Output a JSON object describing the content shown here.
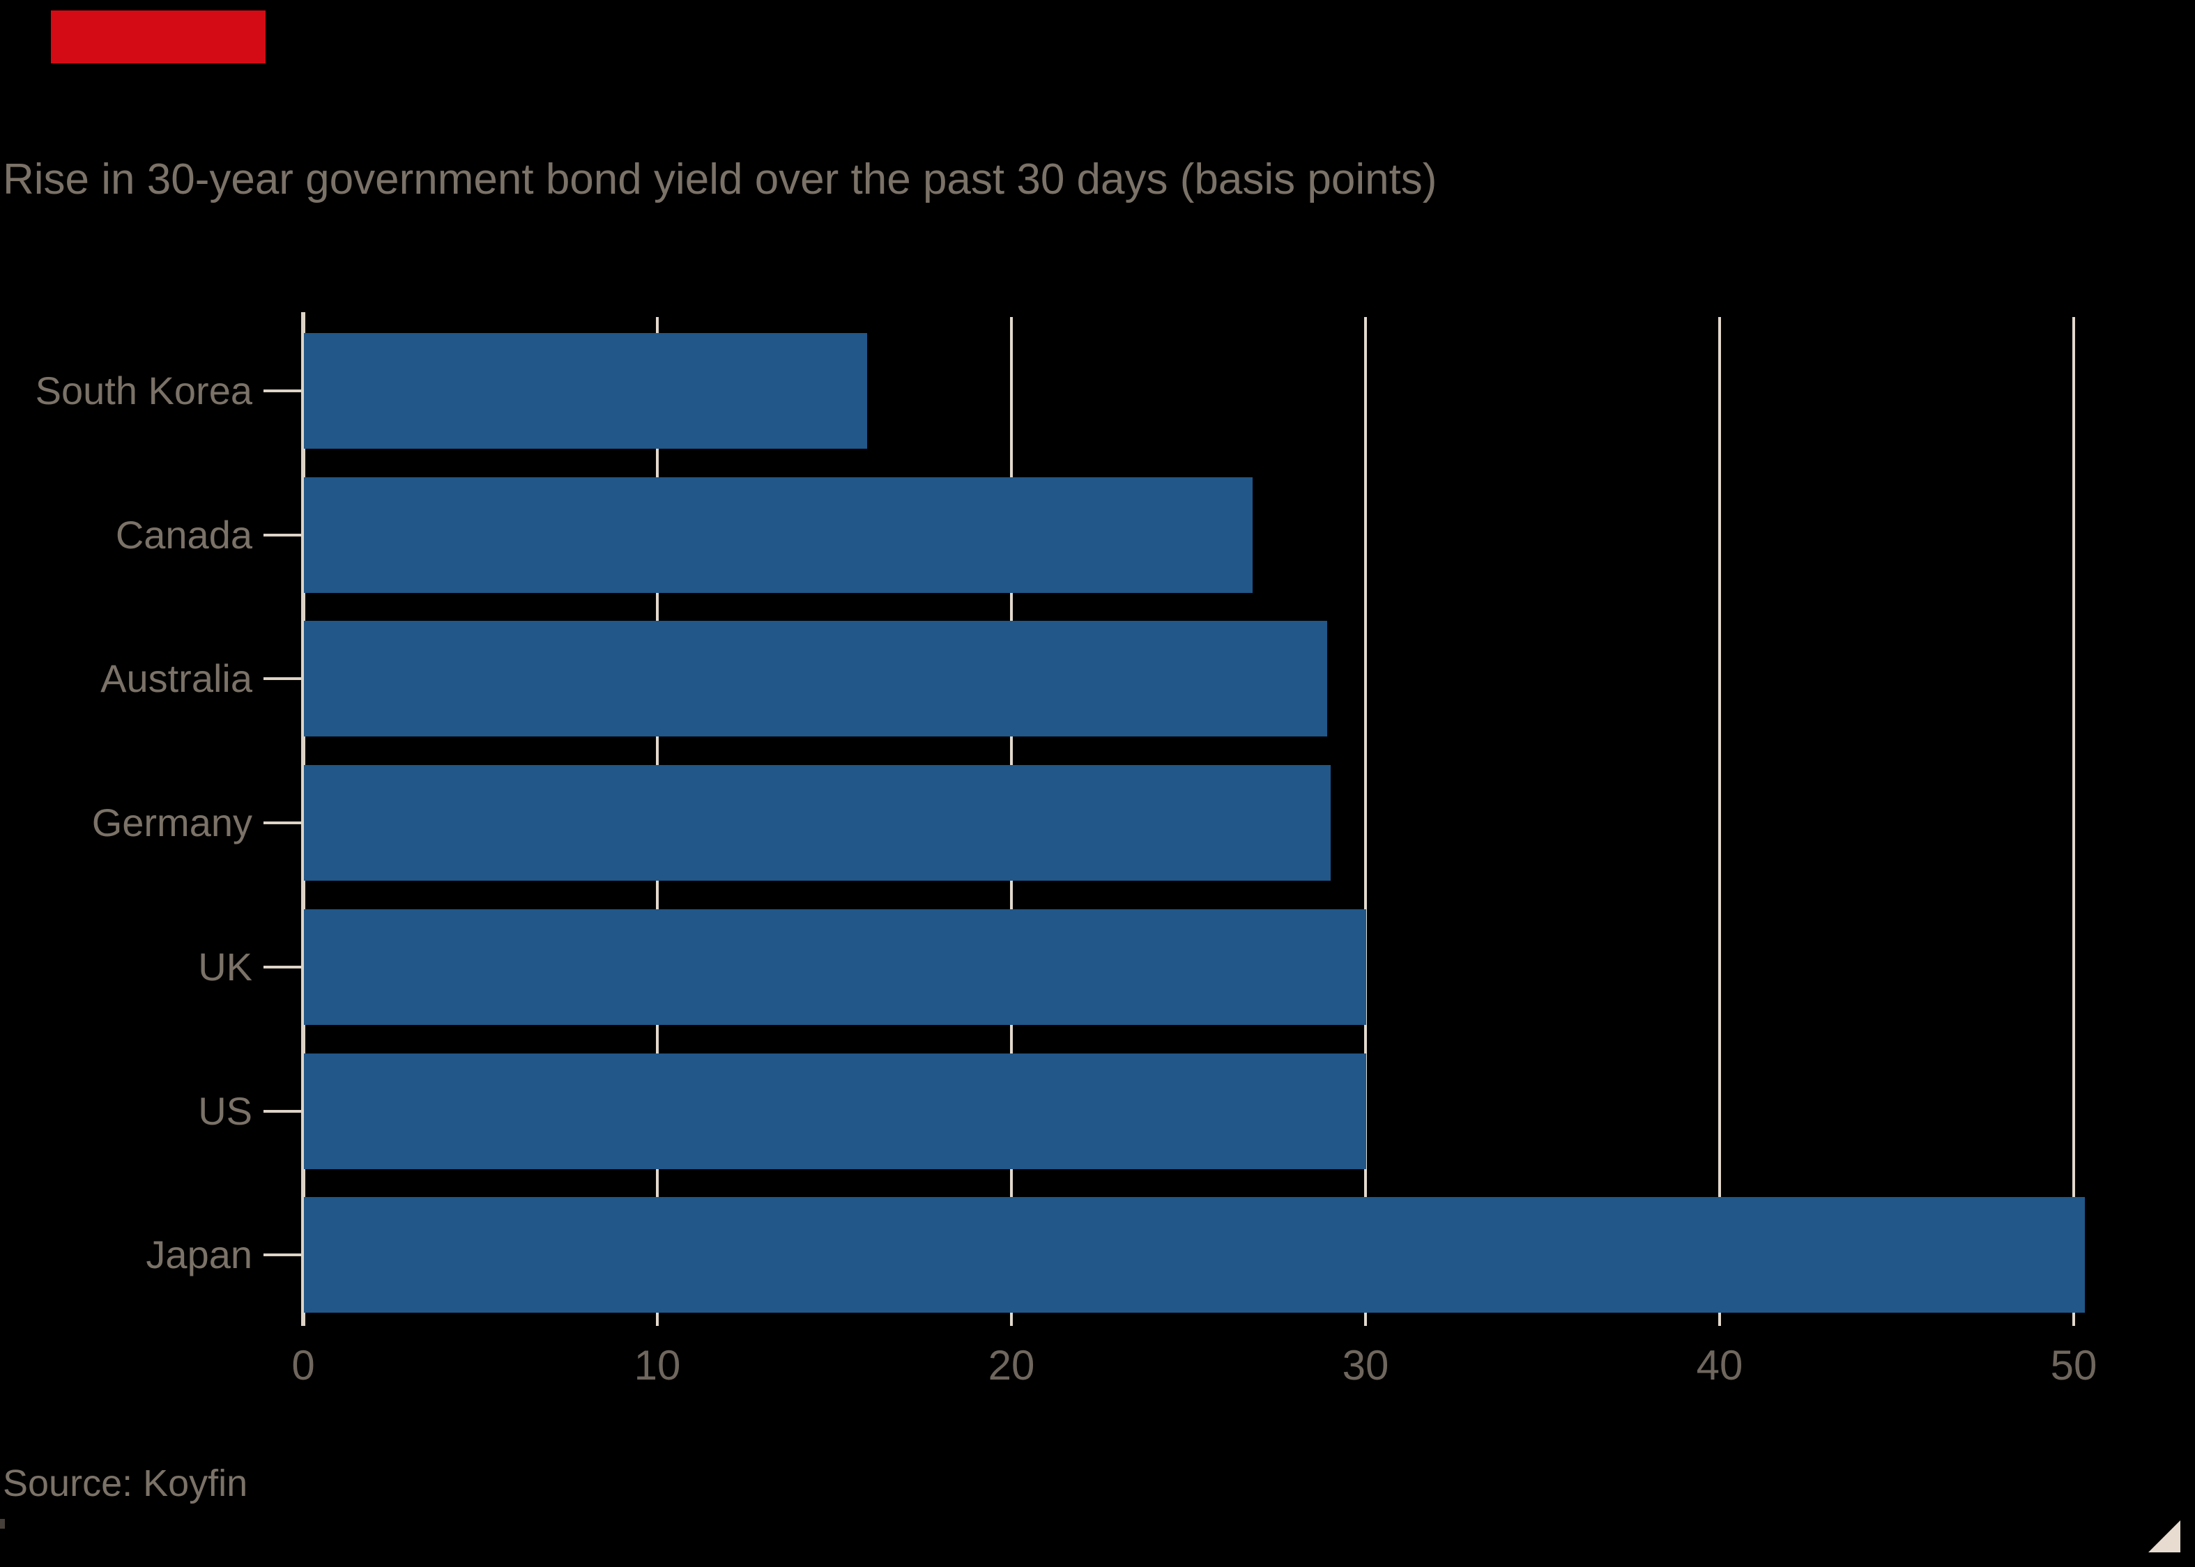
{
  "top_marker": {
    "color": "#d40b14"
  },
  "chart_data": {
    "type": "bar",
    "orientation": "horizontal",
    "title": "Rise in 30-year government bond yield over the past 30 days (basis points)",
    "categories": [
      "South Korea",
      "Canada",
      "Australia",
      "Germany",
      "UK",
      "US",
      "Japan"
    ],
    "values": [
      15.9,
      26.8,
      28.9,
      29,
      30,
      30,
      50.3
    ],
    "x_ticks": [
      0,
      10,
      20,
      30,
      40,
      50
    ],
    "xlim": [
      0,
      53
    ],
    "grid": true,
    "legend": "none",
    "bar_color": "#215789",
    "grid_color": "#e2d9cc",
    "axis_color": "#ddd4c7",
    "title_color": "#7b7268",
    "category_label_color": "#7b7268",
    "tick_label_color": "#6f675e"
  },
  "source": {
    "label": "Source: Koyfin"
  },
  "branding": {
    "corner_triangle_color": "#e7dccf"
  }
}
